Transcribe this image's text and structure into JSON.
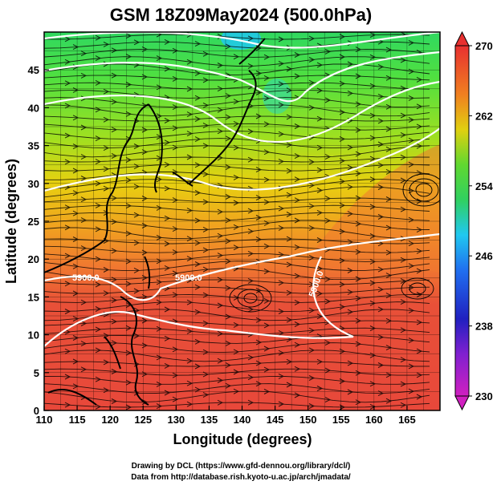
{
  "title": "GSM 18Z09May2024 (500.0hPa)",
  "x_axis": {
    "label": "Longitude (degrees)",
    "ticks": [
      "110",
      "115",
      "120",
      "125",
      "130",
      "135",
      "140",
      "145",
      "150",
      "155",
      "160",
      "165"
    ]
  },
  "y_axis": {
    "label": "Latitude  (degrees)",
    "ticks": [
      "0",
      "5",
      "10",
      "15",
      "20",
      "25",
      "30",
      "35",
      "40",
      "45"
    ]
  },
  "colorbar": {
    "ticks": [
      "230",
      "238",
      "246",
      "254",
      "262",
      "270"
    ],
    "range": [
      230,
      270
    ]
  },
  "contour_labels": [
    "5900.0",
    "5900.0",
    "5900.0"
  ],
  "credits": {
    "line1": "Drawing by DCL (https://www.gfd-dennou.org/library/dcl/)",
    "line2": "Data from http://database.rish.kyoto-u.ac.jp/arch/jmadata/"
  },
  "colors": {
    "warm": "#e8483a",
    "mid": "#f0a020",
    "cool": "#40d040",
    "cold": "#20c8f0",
    "coastline": "#000000",
    "contour": "#ffffff"
  }
}
